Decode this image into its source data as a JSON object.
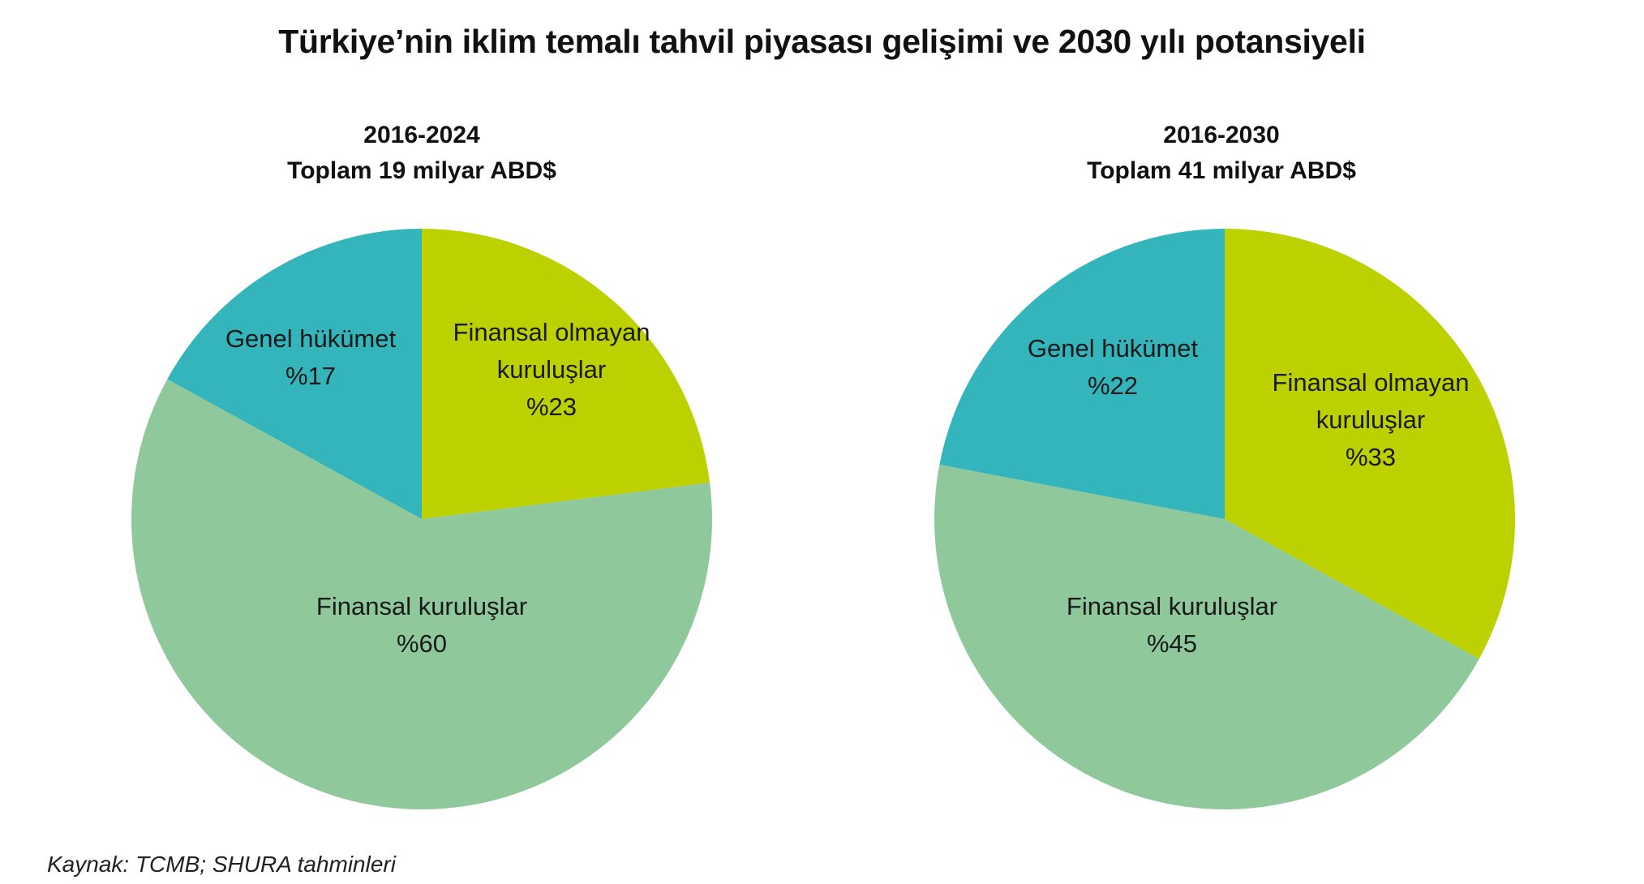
{
  "title": "Türkiye’nin iklim temalı tahvil piyasası gelişimi ve 2030 yılı potansiyeli",
  "source": "Kaynak: TCMB; SHURA tahminleri",
  "colors": {
    "genel_hukumet": "#33b5bb",
    "finansal_olmayan": "#bdd100",
    "finansal": "#8fc99b"
  },
  "chart_data": [
    {
      "type": "pie",
      "period": "2016-2024",
      "total": "Toplam 19 milyar ABD$",
      "slices": [
        {
          "label": "Finansal olmayan kuruluşlar",
          "lines": [
            "Finansal olmayan",
            "kuruluşlar"
          ],
          "value": 23,
          "value_text": "%23",
          "color": "#bdd100"
        },
        {
          "label": "Finansal kuruluşlar",
          "lines": [
            "Finansal kuruluşlar"
          ],
          "value": 60,
          "value_text": "%60",
          "color": "#8fc99b"
        },
        {
          "label": "Genel hükümet",
          "lines": [
            "Genel hükümet"
          ],
          "value": 17,
          "value_text": "%17",
          "color": "#33b5bb"
        }
      ]
    },
    {
      "type": "pie",
      "period": "2016-2030",
      "total": "Toplam 41 milyar ABD$",
      "slices": [
        {
          "label": "Finansal olmayan kuruluşlar",
          "lines": [
            "Finansal olmayan",
            "kuruluşlar"
          ],
          "value": 33,
          "value_text": "%33",
          "color": "#bdd100"
        },
        {
          "label": "Finansal kuruluşlar",
          "lines": [
            "Finansal kuruluşlar"
          ],
          "value": 45,
          "value_text": "%45",
          "color": "#8fc99b"
        },
        {
          "label": "Genel hükümet",
          "lines": [
            "Genel hükümet"
          ],
          "value": 22,
          "value_text": "%22",
          "color": "#33b5bb"
        }
      ]
    }
  ]
}
